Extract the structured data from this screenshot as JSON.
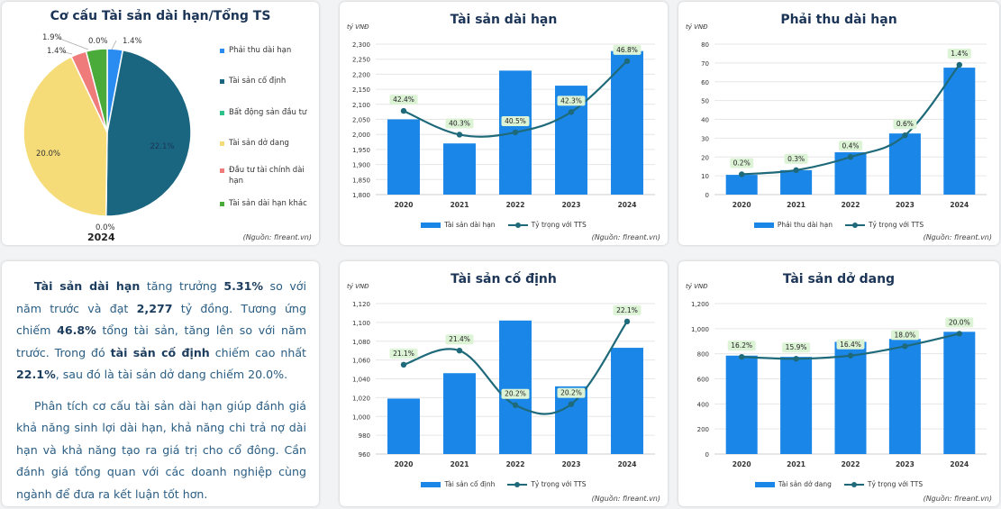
{
  "pie_card": {
    "title": "Cơ cấu Tài sản dài hạn/Tổng TS",
    "year_label": "2024",
    "source": "(Nguồn: fireant.vn)"
  },
  "text_card": {
    "p1": {
      "s1_bold": "Tài sản dài hạn",
      "s2": " tăng trưởng ",
      "s3_bold": "5.31%",
      "s4": " so với năm trước và đạt ",
      "s5_bold": "2,277",
      "s6": " tỷ đồng. Tương ứng chiếm ",
      "s7_bold": "46.8%",
      "s8": " tổng tài sản, tăng lên so với năm trước. Trong đó ",
      "s9_bold": "tài sản cố định",
      "s10": " chiếm cao nhất ",
      "s11_bold": "22.1%",
      "s12": ", sau đó là tài sản dở dang chiếm 20.0%."
    },
    "p2": "Phân tích cơ cấu tài sản dài hạn giúp đánh giá khả năng sinh lợi dài hạn, khả năng chi trả nợ dài hạn và khả năng tạo ra giá trị cho cổ đông. Cần đánh giá tổng quan với các doanh nghiệp cùng ngành để đưa ra kết luận tốt hơn."
  },
  "colors": {
    "bar": "#1a87e8",
    "line": "#1f6a7a",
    "label_bg": "#dcf3d6",
    "title": "#1c3557"
  },
  "chart_data": [
    {
      "id": "pie",
      "type": "pie",
      "title": "Cơ cấu Tài sản dài hạn/Tổng TS",
      "subtitle": "2024",
      "legend": "right",
      "slices": [
        {
          "label": "Phải thu dài hạn",
          "value": 1.4,
          "display": "1.4%",
          "color": "#2a8cf0"
        },
        {
          "label": "Tài sản cố định",
          "value": 22.1,
          "display": "22.1%",
          "color": "#1a6680"
        },
        {
          "label": "Bất động sản đầu tư",
          "value": 0.0,
          "display": "0.0%",
          "color": "#2ec28a"
        },
        {
          "label": "Tài sản dở dang",
          "value": 20.0,
          "display": "20.0%",
          "color": "#f5dc78"
        },
        {
          "label": "Đầu tư tài chính dài hạn",
          "value": 1.4,
          "display": "1.4%",
          "color": "#ef7b7b"
        },
        {
          "label": "Tài sản dài hạn khác",
          "value": 1.9,
          "display": "1.9%",
          "color": "#4aaa3a"
        }
      ],
      "extra_label": "0.0%",
      "source": "(Nguồn: fireant.vn)"
    },
    {
      "id": "tsdh",
      "type": "bar",
      "title": "Tài sản dài hạn",
      "unit": "tỷ VNĐ",
      "categories": [
        "2020",
        "2021",
        "2022",
        "2023",
        "2024"
      ],
      "ylim": [
        1800,
        2300
      ],
      "yticks": [
        1800,
        1850,
        1900,
        1950,
        2000,
        2050,
        2100,
        2150,
        2200,
        2250,
        2300
      ],
      "series": [
        {
          "name": "Tài sản dài hạn",
          "kind": "bar",
          "values": [
            2050,
            1970,
            2212,
            2162,
            2277
          ]
        },
        {
          "name": "Tỷ trọng với TTS",
          "kind": "line",
          "values": [
            42.4,
            40.3,
            40.5,
            42.3,
            46.8
          ],
          "labels": [
            "42.4%",
            "40.3%",
            "40.5%",
            "42.3%",
            "46.8%"
          ],
          "plot_range": [
            35,
            48.3
          ]
        }
      ],
      "grid": true,
      "legend": "bottom",
      "source": "(Nguồn: fireant.vn)"
    },
    {
      "id": "pthu",
      "type": "bar",
      "title": "Phải thu dài hạn",
      "unit": "tỷ VNĐ",
      "categories": [
        "2020",
        "2021",
        "2022",
        "2023",
        "2024"
      ],
      "ylim": [
        0,
        80
      ],
      "yticks": [
        0,
        10,
        20,
        30,
        40,
        50,
        60,
        70,
        80
      ],
      "series": [
        {
          "name": "Phải thu dài hạn",
          "kind": "bar",
          "values": [
            10.5,
            13,
            22.5,
            32.5,
            67.5
          ]
        },
        {
          "name": "Tỷ trọng với TTS",
          "kind": "line",
          "values": [
            0.2,
            0.3,
            0.4,
            0.6,
            1.4
          ],
          "labels": [
            "0.2%",
            "0.3%",
            "0.4%",
            "0.6%",
            "1.4%"
          ],
          "plot_positions": [
            10.8,
            13,
            20,
            31.5,
            69
          ]
        }
      ],
      "grid": true,
      "legend": "bottom",
      "source": "(Nguồn: fireant.vn)"
    },
    {
      "id": "tscd",
      "type": "bar",
      "title": "Tài sản cố định",
      "unit": "tỷ VNĐ",
      "categories": [
        "2020",
        "2021",
        "2022",
        "2023",
        "2024"
      ],
      "ylim": [
        960,
        1120
      ],
      "yticks": [
        960,
        980,
        1000,
        1020,
        1040,
        1060,
        1080,
        1100,
        1120
      ],
      "series": [
        {
          "name": "Tài sản cố định",
          "kind": "bar",
          "values": [
            1019,
            1046,
            1102,
            1032,
            1073
          ]
        },
        {
          "name": "Tỷ trọng với TTS",
          "kind": "line",
          "values": [
            21.1,
            21.4,
            20.2,
            20.2,
            22.1
          ],
          "labels": [
            "21.1%",
            "21.4%",
            "20.2%",
            "20.2%",
            "22.1%"
          ],
          "plot_positions": [
            1055,
            1070,
            1012,
            1013,
            1101
          ]
        }
      ],
      "grid": true,
      "legend": "bottom",
      "source": "(Nguồn: fireant.vn)"
    },
    {
      "id": "tsdd",
      "type": "bar",
      "title": "Tài sản dở dang",
      "unit": "tỷ VNĐ",
      "categories": [
        "2020",
        "2021",
        "2022",
        "2023",
        "2024"
      ],
      "ylim": [
        0,
        1200
      ],
      "yticks": [
        0,
        200,
        400,
        600,
        800,
        1000,
        1200
      ],
      "series": [
        {
          "name": "Tài sản dở dang",
          "kind": "bar",
          "values": [
            785,
            775,
            895,
            918,
            975
          ]
        },
        {
          "name": "Tỷ trọng với TTS",
          "kind": "line",
          "values": [
            16.2,
            15.9,
            16.4,
            18.0,
            20.0
          ],
          "labels": [
            "16.2%",
            "15.9%",
            "16.4%",
            "18.0%",
            "20.0%"
          ],
          "plot_positions": [
            775,
            760,
            785,
            860,
            960
          ]
        }
      ],
      "grid": true,
      "legend": "bottom",
      "source": "(Nguồn: fireant.vn)"
    }
  ]
}
